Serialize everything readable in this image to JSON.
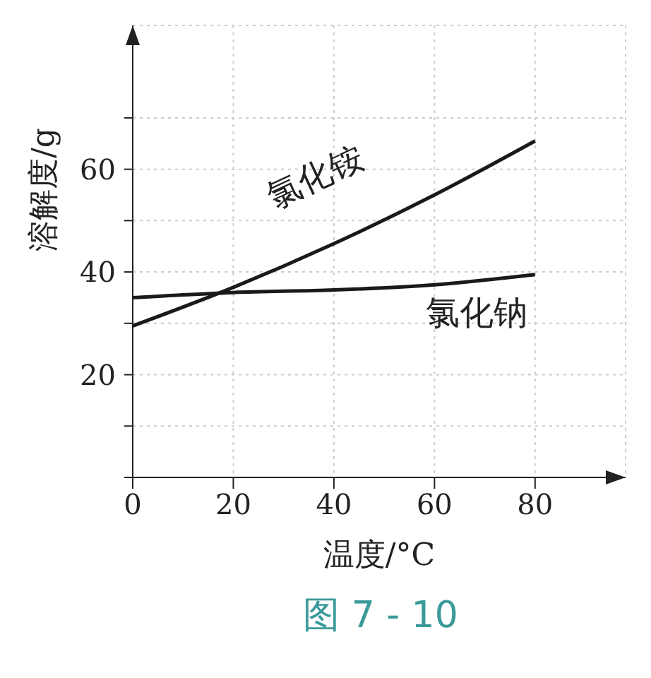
{
  "chart_data": {
    "type": "line",
    "xlabel": "温度/°C",
    "ylabel": "溶解度/g",
    "x": [
      0,
      20,
      40,
      60,
      80
    ],
    "series": [
      {
        "name": "氯化铵",
        "color": "#1a1a1a",
        "values": [
          29.5,
          37,
          45.5,
          55,
          65.5
        ]
      },
      {
        "name": "氯化钠",
        "color": "#1a1a1a",
        "values": [
          35,
          36,
          36.5,
          37.5,
          39.5
        ]
      }
    ],
    "xlim": [
      0,
      98
    ],
    "ylim": [
      0,
      88
    ],
    "xticks": [
      0,
      20,
      40,
      60,
      80
    ],
    "yticks": [
      {
        "value": 0,
        "label": null
      },
      {
        "value": 10,
        "label": null
      },
      20,
      {
        "value": 30,
        "label": null
      },
      40,
      {
        "value": 50,
        "label": null
      },
      60,
      {
        "value": 70,
        "label": null
      }
    ],
    "grid": true,
    "marker": "none",
    "line_style": "solid",
    "legend": false,
    "annotations": [
      "图 7 - 10"
    ]
  }
}
